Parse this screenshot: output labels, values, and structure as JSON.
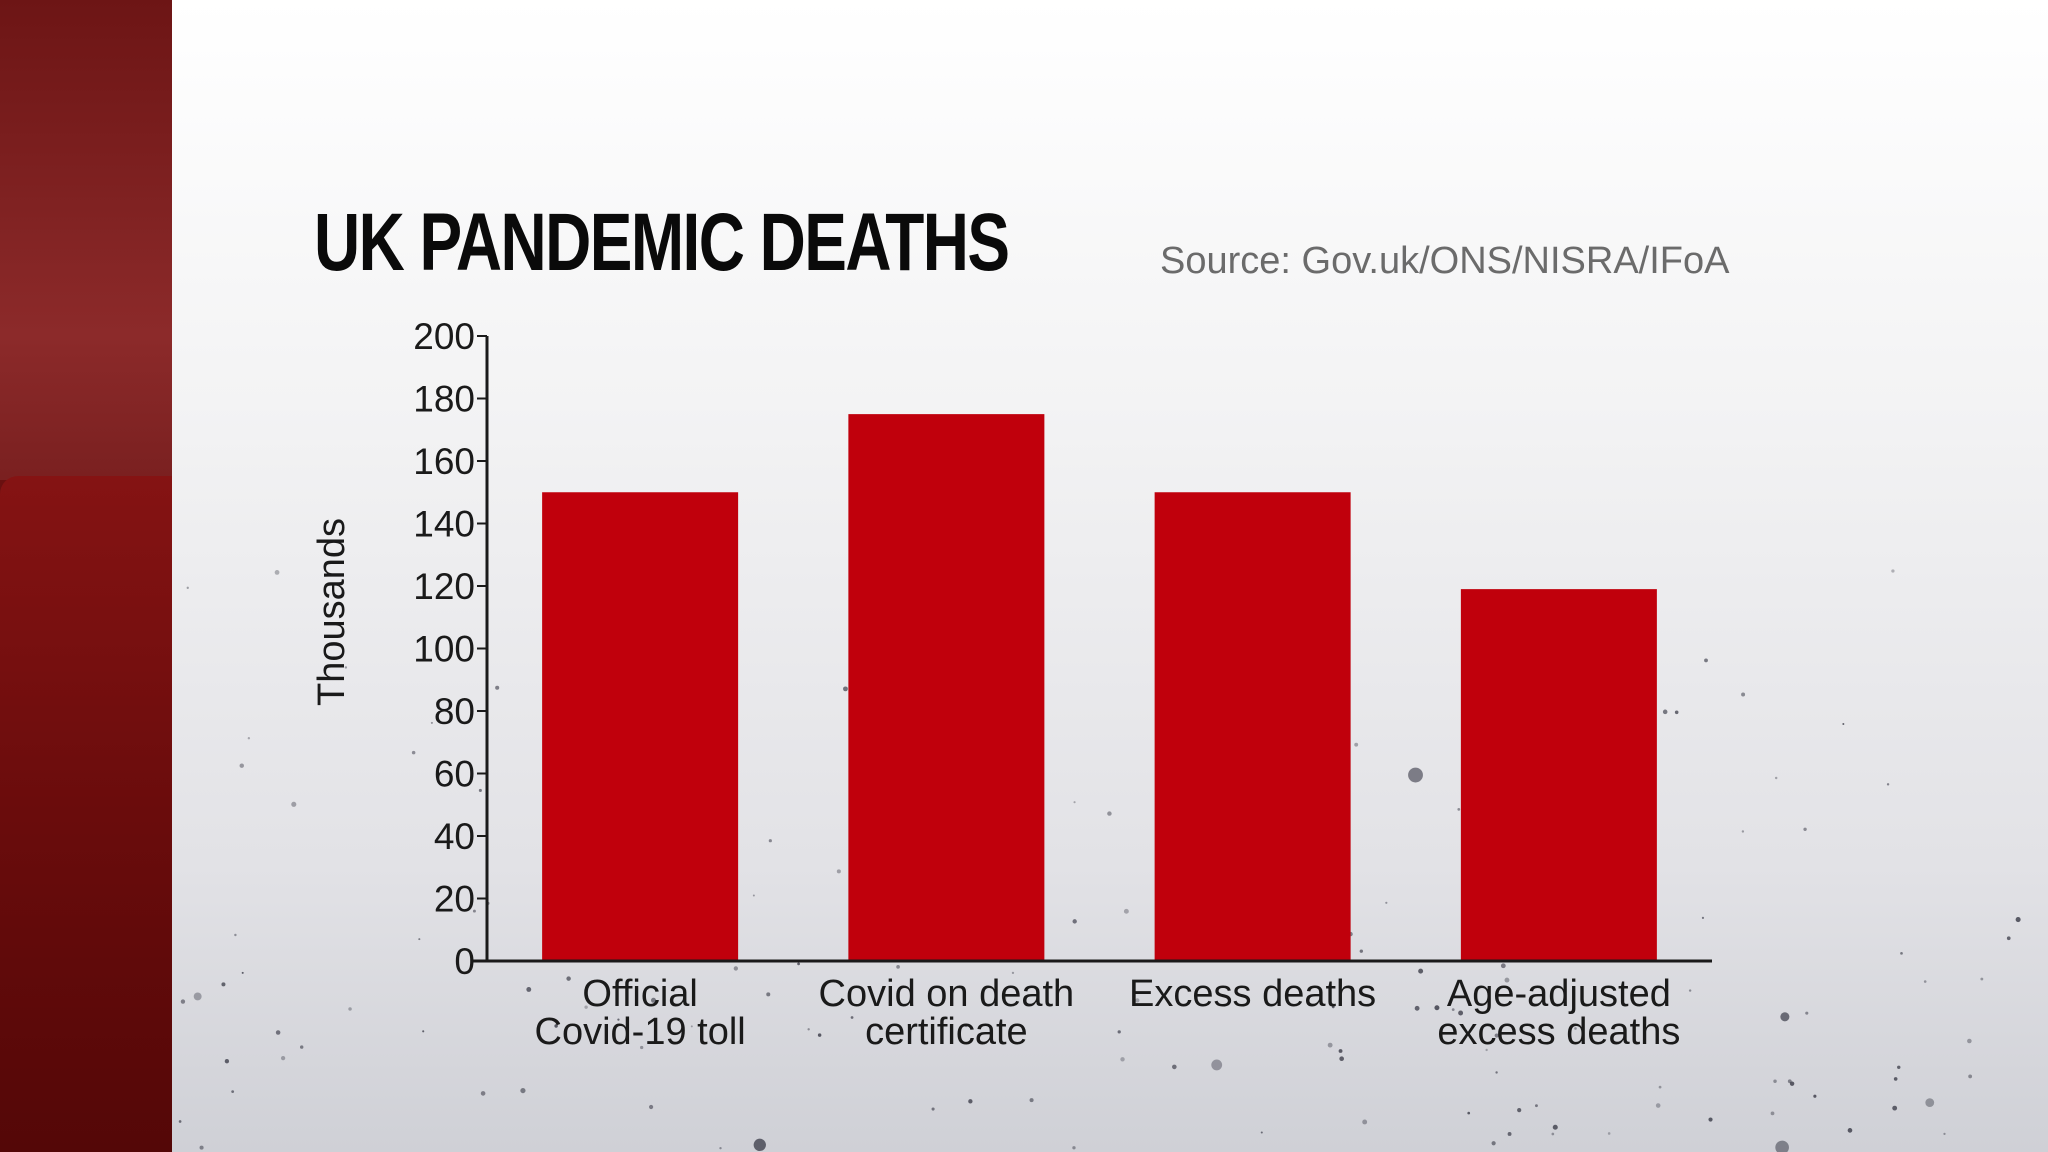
{
  "title": "UK PANDEMIC DEATHS",
  "source": "Source: Gov.uk/ONS/NISRA/IFoA",
  "colors": {
    "bar": "#c0000c",
    "sidebar": "#6d1212",
    "text": "#111111",
    "source_text": "#6b6b6b"
  },
  "chart_data": {
    "type": "bar",
    "title": "UK PANDEMIC DEATHS",
    "categories": [
      [
        "Official",
        "Covid-19 toll"
      ],
      [
        "Covid on death",
        "certificate"
      ],
      [
        "Excess deaths"
      ],
      [
        "Age-adjusted",
        "excess deaths"
      ]
    ],
    "values": [
      150,
      175,
      150,
      119
    ],
    "ylabel": "Thousands",
    "xlabel": "",
    "ylim": [
      0,
      200
    ],
    "yticks": [
      0,
      20,
      40,
      60,
      80,
      100,
      120,
      140,
      160,
      180,
      200
    ],
    "grid": false,
    "legend": "none"
  }
}
